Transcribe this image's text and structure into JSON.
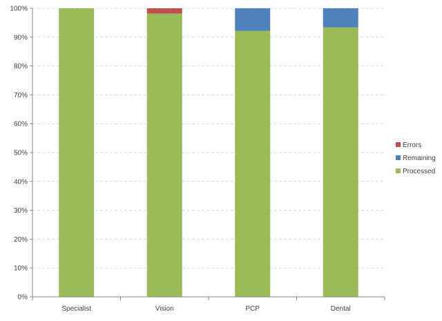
{
  "chart_data": {
    "type": "bar",
    "stacked": true,
    "percent": true,
    "categories": [
      "Specialist",
      "Vision",
      "PCP",
      "Dental"
    ],
    "series": [
      {
        "name": "Processed",
        "color": "#9BBB59",
        "values": [
          100,
          98.2,
          92.2,
          93.4
        ]
      },
      {
        "name": "Remaining",
        "color": "#4F81BD",
        "values": [
          0,
          0,
          7.8,
          6.6
        ]
      },
      {
        "name": "Errors",
        "color": "#C0504D",
        "values": [
          0,
          1.8,
          0,
          0
        ]
      }
    ],
    "y_ticks": [
      "0%",
      "10%",
      "20%",
      "30%",
      "40%",
      "50%",
      "60%",
      "70%",
      "80%",
      "90%",
      "100%"
    ],
    "ylim": [
      0,
      100
    ],
    "grid": true,
    "legend": {
      "position": "right",
      "order": [
        "Errors",
        "Remaining",
        "Processed"
      ]
    }
  }
}
